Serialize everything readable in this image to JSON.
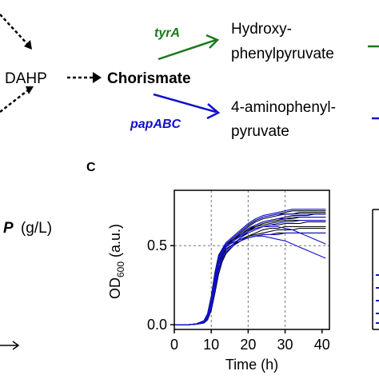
{
  "pathway": {
    "dahp": "DAHP",
    "chorismate": "Chorismate",
    "tyra_gene": "tyrA",
    "papabc_gene": "papABC",
    "hpp_line1": "Hydroxy-",
    "hpp_line2": "phenylpyruvate",
    "app_line1": "4-aminophenyl-",
    "app_line2": "pyruvate",
    "colors": {
      "tyrA": "#1a7a1a",
      "papABC": "#1010cc"
    }
  },
  "panel_c": {
    "letter": "C"
  },
  "left_label": {
    "symbol": "P",
    "unit": "(g/L)"
  },
  "chart_data": {
    "type": "line",
    "xlabel": "Time (h)",
    "ylabel_main": "OD",
    "ylabel_sub": "600",
    "ylabel_suffix": " (a.u.)",
    "x_ticks": [
      "0",
      "10",
      "20",
      "30",
      "40"
    ],
    "y_ticks": [
      "0.0",
      "0.5"
    ],
    "xlim": [
      0,
      42
    ],
    "ylim": [
      -0.03,
      0.85
    ],
    "grid_x": [
      10,
      20,
      30
    ],
    "grid_y": [
      0.5
    ],
    "grid": "dashed",
    "x": [
      0,
      2,
      4,
      6,
      8,
      9,
      10,
      11,
      12,
      13,
      14,
      16,
      18,
      20,
      22,
      24,
      26,
      28,
      30,
      32,
      34,
      36,
      38,
      40,
      41
    ],
    "series": [
      {
        "color": "#000000",
        "values": [
          0,
          0,
          0,
          0.005,
          0.02,
          0.06,
          0.16,
          0.3,
          0.42,
          0.47,
          0.5,
          0.53,
          0.56,
          0.59,
          0.61,
          0.62,
          0.63,
          0.63,
          0.64,
          0.64,
          0.64,
          0.65,
          0.65,
          0.65,
          0.65
        ]
      },
      {
        "color": "#000000",
        "values": [
          0,
          0,
          0,
          0.004,
          0.015,
          0.05,
          0.13,
          0.27,
          0.39,
          0.45,
          0.49,
          0.53,
          0.57,
          0.6,
          0.62,
          0.64,
          0.65,
          0.66,
          0.67,
          0.67,
          0.68,
          0.68,
          0.68,
          0.68,
          0.68
        ]
      },
      {
        "color": "#000000",
        "values": [
          0,
          0,
          0,
          0.003,
          0.012,
          0.04,
          0.11,
          0.23,
          0.35,
          0.42,
          0.46,
          0.5,
          0.53,
          0.56,
          0.58,
          0.6,
          0.61,
          0.61,
          0.62,
          0.62,
          0.62,
          0.62,
          0.62,
          0.62,
          0.62
        ]
      },
      {
        "color": "#000000",
        "values": [
          0,
          0,
          0,
          0.006,
          0.025,
          0.07,
          0.18,
          0.33,
          0.44,
          0.48,
          0.51,
          0.54,
          0.58,
          0.62,
          0.65,
          0.67,
          0.68,
          0.69,
          0.7,
          0.7,
          0.71,
          0.71,
          0.71,
          0.71,
          0.71
        ]
      },
      {
        "color": "#000000",
        "values": [
          0,
          0,
          0,
          0.004,
          0.018,
          0.055,
          0.14,
          0.28,
          0.4,
          0.46,
          0.5,
          0.52,
          0.54,
          0.56,
          0.57,
          0.58,
          0.59,
          0.6,
          0.6,
          0.6,
          0.61,
          0.61,
          0.61,
          0.61,
          0.61
        ]
      },
      {
        "color": "#000000",
        "values": [
          0,
          0,
          0,
          0.003,
          0.01,
          0.03,
          0.09,
          0.2,
          0.32,
          0.4,
          0.45,
          0.5,
          0.55,
          0.59,
          0.62,
          0.63,
          0.64,
          0.65,
          0.66,
          0.66,
          0.66,
          0.66,
          0.66,
          0.66,
          0.66
        ]
      },
      {
        "color": "#000000",
        "values": [
          0,
          0,
          0,
          0.005,
          0.02,
          0.06,
          0.15,
          0.29,
          0.41,
          0.47,
          0.51,
          0.55,
          0.59,
          0.63,
          0.66,
          0.68,
          0.69,
          0.7,
          0.71,
          0.72,
          0.72,
          0.72,
          0.72,
          0.72,
          0.72
        ]
      },
      {
        "color": "#000000",
        "values": [
          0,
          0,
          0,
          0.004,
          0.016,
          0.05,
          0.13,
          0.26,
          0.38,
          0.44,
          0.48,
          0.51,
          0.53,
          0.55,
          0.56,
          0.57,
          0.57,
          0.58,
          0.58,
          0.58,
          0.58,
          0.58,
          0.58,
          0.58,
          0.58
        ]
      },
      {
        "color": "#000000",
        "values": [
          0,
          0,
          0,
          0.005,
          0.02,
          0.058,
          0.15,
          0.3,
          0.42,
          0.47,
          0.5,
          0.54,
          0.57,
          0.6,
          0.63,
          0.65,
          0.66,
          0.67,
          0.68,
          0.69,
          0.69,
          0.69,
          0.7,
          0.7,
          0.7
        ]
      },
      {
        "color": "#1010cc",
        "values": [
          0,
          0,
          0,
          0.004,
          0.015,
          0.05,
          0.13,
          0.27,
          0.39,
          0.45,
          0.49,
          0.53,
          0.56,
          0.59,
          0.61,
          0.62,
          0.62,
          0.62,
          0.61,
          0.6,
          0.58,
          0.56,
          0.54,
          0.52,
          0.51
        ]
      },
      {
        "color": "#1010cc",
        "values": [
          0,
          0,
          0,
          0.005,
          0.02,
          0.06,
          0.16,
          0.31,
          0.43,
          0.48,
          0.51,
          0.55,
          0.59,
          0.63,
          0.66,
          0.68,
          0.69,
          0.7,
          0.7,
          0.7,
          0.7,
          0.7,
          0.7,
          0.7,
          0.7
        ]
      },
      {
        "color": "#1010cc",
        "values": [
          0,
          0,
          0,
          0.003,
          0.012,
          0.04,
          0.11,
          0.24,
          0.36,
          0.43,
          0.47,
          0.51,
          0.55,
          0.58,
          0.6,
          0.62,
          0.63,
          0.64,
          0.65,
          0.65,
          0.66,
          0.66,
          0.66,
          0.66,
          0.66
        ]
      },
      {
        "color": "#1010cc",
        "values": [
          0,
          0,
          0,
          0.004,
          0.017,
          0.052,
          0.14,
          0.28,
          0.4,
          0.46,
          0.5,
          0.52,
          0.54,
          0.55,
          0.56,
          0.57,
          0.57,
          0.57,
          0.58,
          0.58,
          0.58,
          0.58,
          0.58,
          0.58,
          0.58
        ]
      },
      {
        "color": "#1010cc",
        "values": [
          0,
          0,
          0,
          0.006,
          0.024,
          0.068,
          0.17,
          0.32,
          0.43,
          0.48,
          0.52,
          0.56,
          0.6,
          0.64,
          0.67,
          0.69,
          0.7,
          0.71,
          0.72,
          0.73,
          0.73,
          0.73,
          0.73,
          0.73,
          0.73
        ]
      },
      {
        "color": "#1010cc",
        "values": [
          0,
          0,
          0,
          0.003,
          0.011,
          0.035,
          0.1,
          0.22,
          0.34,
          0.41,
          0.46,
          0.5,
          0.53,
          0.55,
          0.56,
          0.56,
          0.55,
          0.54,
          0.53,
          0.51,
          0.49,
          0.47,
          0.45,
          0.43,
          0.42
        ]
      },
      {
        "color": "#1010cc",
        "values": [
          0,
          0,
          0,
          0.004,
          0.018,
          0.055,
          0.145,
          0.29,
          0.41,
          0.47,
          0.5,
          0.53,
          0.57,
          0.61,
          0.63,
          0.65,
          0.66,
          0.67,
          0.67,
          0.68,
          0.68,
          0.68,
          0.68,
          0.68,
          0.68
        ]
      }
    ]
  }
}
